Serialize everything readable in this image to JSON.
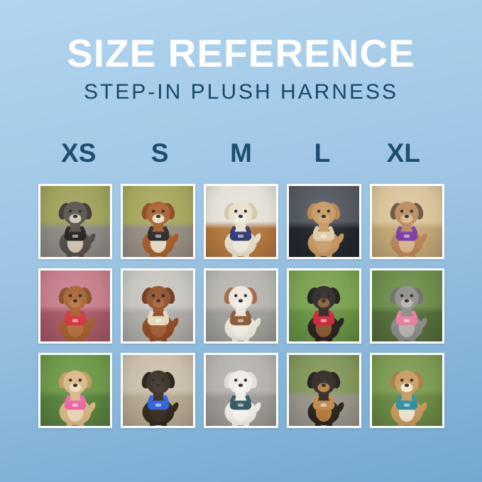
{
  "page": {
    "bg_top": "#b2d5ef",
    "bg_mid": "#9cc4e3",
    "bg_bottom": "#74a8d0"
  },
  "header": {
    "title": "SIZE REFERENCE",
    "subtitle": "STEP-IN PLUSH HARNESS",
    "title_color": "#fdfefe",
    "subtitle_color": "#17496a"
  },
  "sizes": [
    "XS",
    "S",
    "M",
    "L",
    "XL"
  ],
  "size_label_color": "#1c4e71",
  "grid": {
    "rows": 3,
    "cols": 5,
    "cells": [
      {
        "row": 1,
        "size": "XS",
        "alt": "Grey schnauzer mix wearing a black harness on an autumn woodland path",
        "bg_top": "#a3a45e",
        "bg_bottom": "#8f8c86",
        "fur": "#55504a",
        "ear": "#3a3632",
        "chest": "#cfc6b2",
        "harness": "#23221f"
      },
      {
        "row": 1,
        "size": "S",
        "alt": "Red dachshund wearing a black harness outdoors among fall trees",
        "bg_top": "#a9aa60",
        "bg_bottom": "#998f85",
        "fur": "#a85e2b",
        "ear": "#8a4a20",
        "chest": "#e8dcc6",
        "harness": "#2b2b30"
      },
      {
        "row": 1,
        "size": "M",
        "alt": "Cream shih tzu mix wearing a navy harness indoors on a wood floor",
        "bg_top": "#e7e4dc",
        "bg_bottom": "#b57a40",
        "fur": "#e9e0ca",
        "ear": "#d6c8ac",
        "chest": "#f3ede0",
        "harness": "#2d3a72"
      },
      {
        "row": 1,
        "size": "L",
        "alt": "Apricot doodle wearing a tan harness sitting in a car seat",
        "bg_top": "#565b62",
        "bg_bottom": "#24282d",
        "fur": "#c79862",
        "ear": "#b5854f",
        "chest": "#cfa372",
        "harness": "#e0d0ac"
      },
      {
        "row": 1,
        "size": "XL",
        "alt": "Fawn french bulldog wearing a purple harness on beach sand",
        "bg_top": "#dcc79e",
        "bg_bottom": "#c3a877",
        "fur": "#b9895a",
        "ear": "#6b523f",
        "chest": "#d9b88c",
        "harness": "#7a3da6"
      },
      {
        "row": 2,
        "size": "XS",
        "alt": "Red cavapoo puppy wearing a red harness among pink autumn leaves",
        "bg_top": "#c9818e",
        "bg_bottom": "#a75a68",
        "fur": "#a5602f",
        "ear": "#8a4c24",
        "chest": "#b5723c",
        "harness": "#d63340"
      },
      {
        "row": 2,
        "size": "S",
        "alt": "Ruby cavalier spaniel wearing a cream harness on a concrete sidewalk",
        "bg_top": "#cbc9c4",
        "bg_bottom": "#b0aea9",
        "fur": "#8f4d26",
        "ear": "#70391a",
        "chest": "#a5613a",
        "harness": "#e6dbc0"
      },
      {
        "row": 2,
        "size": "M",
        "alt": "Red merle australian shepherd puppy wearing a brown harness on concrete",
        "bg_top": "#bab8b3",
        "bg_bottom": "#a19f9a",
        "fur": "#ece7dd",
        "ear": "#a3683f",
        "chest": "#f3efe7",
        "harness": "#8a5a38"
      },
      {
        "row": 2,
        "size": "L",
        "alt": "Black and tan miniature pinscher wearing a red harness on green grass",
        "bg_top": "#7da352",
        "bg_bottom": "#699245",
        "fur": "#2a2522",
        "ear": "#1d1a17",
        "chest": "#8a5a32",
        "harness": "#cf2838"
      },
      {
        "row": 2,
        "size": "XL",
        "alt": "Grey schnauzer wearing a pink harness in front of pink flowers",
        "bg_top": "#6f8f4d",
        "bg_bottom": "#566f3c",
        "fur": "#8d8c88",
        "ear": "#6f6e6a",
        "chest": "#b5b4ae",
        "harness": "#e97ea4"
      },
      {
        "row": 3,
        "size": "XS",
        "alt": "Tan chihuahua wearing a pink harness standing on grass",
        "bg_top": "#6f9a49",
        "bg_bottom": "#5a8340",
        "fur": "#d9b786",
        "ear": "#c09a62",
        "chest": "#ecd9b5",
        "harness": "#ee64a5"
      },
      {
        "row": 3,
        "size": "S",
        "alt": "Black brussels griffon wearing a blue harness held by its owner",
        "bg_top": "#cdc2ae",
        "bg_bottom": "#b7aa94",
        "fur": "#342a20",
        "ear": "#241c14",
        "chest": "#3e3226",
        "harness": "#2f62d9"
      },
      {
        "row": 3,
        "size": "M",
        "alt": "White bichon frise wearing a dark teal harness on pavement",
        "bg_top": "#b9b6b1",
        "bg_bottom": "#9e9b96",
        "fur": "#f0ede7",
        "ear": "#e2ded6",
        "chest": "#f7f5f0",
        "harness": "#31595e"
      },
      {
        "row": 3,
        "size": "L",
        "alt": "Black and tan dachshund carrying a stick, wearing a tan harness",
        "bg_top": "#83985c",
        "bg_bottom": "#9b968c",
        "fur": "#2c2621",
        "ear": "#1f1b17",
        "chest": "#b57c3f",
        "harness": "#c28a4a"
      },
      {
        "row": 3,
        "size": "XL",
        "alt": "Beagle wearing a teal harness sitting on grass with autumn leaves",
        "bg_top": "#7e9c52",
        "bg_bottom": "#6b8a45",
        "fur": "#c79a5e",
        "ear": "#a87c42",
        "chest": "#f0e6d2",
        "harness": "#2e8fa3"
      }
    ]
  }
}
